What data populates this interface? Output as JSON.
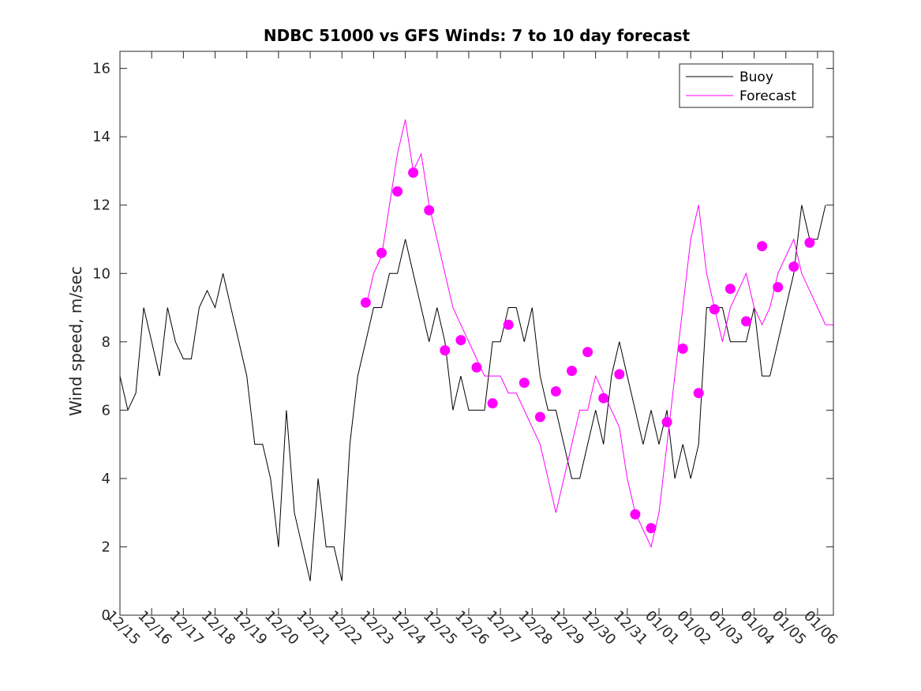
{
  "chart_data": {
    "type": "line",
    "title": "NDBC 51000 vs GFS Winds: 7 to 10 day forecast",
    "xlabel": "",
    "ylabel": "Wind speed, m/sec",
    "ylim": [
      0,
      16.5
    ],
    "yticks": [
      0,
      2,
      4,
      6,
      8,
      10,
      12,
      14,
      16
    ],
    "xlim": [
      0,
      22.5
    ],
    "xtick_positions": [
      0,
      1,
      2,
      3,
      4,
      5,
      6,
      7,
      8,
      9,
      10,
      11,
      12,
      13,
      14,
      15,
      16,
      17,
      18,
      19,
      20,
      21,
      22
    ],
    "xtick_labels": [
      "12/15",
      "12/16",
      "12/17",
      "12/18",
      "12/19",
      "12/20",
      "12/21",
      "12/22",
      "12/23",
      "12/24",
      "12/25",
      "12/26",
      "12/27",
      "12/28",
      "12/29",
      "12/30",
      "12/31",
      "01/01",
      "01/02",
      "01/03",
      "01/04",
      "01/05",
      "01/06"
    ],
    "legend": {
      "position": "top-right",
      "entries": [
        {
          "label": "Buoy",
          "color": "#000000"
        },
        {
          "label": "Forecast",
          "color": "#ff00ff"
        }
      ]
    },
    "series": [
      {
        "name": "Buoy",
        "color": "#000000",
        "x": [
          0,
          0.25,
          0.5,
          0.75,
          1,
          1.25,
          1.5,
          1.75,
          2,
          2.25,
          2.5,
          2.75,
          3,
          3.25,
          3.5,
          3.75,
          4,
          4.25,
          4.5,
          4.75,
          5,
          5.25,
          5.5,
          5.75,
          6,
          6.25,
          6.5,
          6.75,
          7,
          7.25,
          7.5,
          7.75,
          8,
          8.25,
          8.5,
          8.75,
          9,
          9.25,
          9.5,
          9.75,
          10,
          10.25,
          10.5,
          10.75,
          11,
          11.25,
          11.5,
          11.75,
          12,
          12.25,
          12.5,
          12.75,
          13,
          13.25,
          13.5,
          13.75,
          14,
          14.25,
          14.5,
          14.75,
          15,
          15.25,
          15.5,
          15.75,
          16,
          16.25,
          16.5,
          16.75,
          17,
          17.25,
          17.5,
          17.75,
          18,
          18.25,
          18.5,
          18.75,
          19,
          19.25,
          19.5,
          19.75,
          20,
          20.25,
          20.5,
          20.75,
          21,
          21.25,
          21.5,
          21.75,
          22,
          22.25
        ],
        "y": [
          7,
          6,
          6.5,
          9,
          8,
          7,
          9,
          8,
          7.5,
          7.5,
          9,
          9.5,
          9,
          10,
          9,
          8,
          7,
          5,
          5,
          4,
          2,
          6,
          3,
          2,
          1,
          4,
          2,
          2,
          1,
          5,
          7,
          8,
          9,
          9,
          10,
          10,
          11,
          10,
          9,
          8,
          9,
          8,
          6,
          7,
          6,
          6,
          6,
          8,
          8,
          9,
          9,
          8,
          9,
          7,
          6,
          6,
          5,
          4,
          4,
          5,
          6,
          5,
          7,
          8,
          7,
          6,
          5,
          6,
          5,
          6,
          4,
          5,
          4,
          5,
          9,
          9,
          9,
          8,
          8,
          8,
          9,
          7,
          7,
          8,
          9,
          10,
          12,
          11,
          11,
          12
        ]
      },
      {
        "name": "Forecast",
        "color": "#ff00ff",
        "x": [
          7.75,
          8,
          8.25,
          8.5,
          8.75,
          9,
          9.25,
          9.5,
          9.75,
          10,
          10.25,
          10.5,
          10.75,
          11,
          11.25,
          11.5,
          11.75,
          12,
          12.25,
          12.5,
          12.75,
          13,
          13.25,
          13.5,
          13.75,
          14,
          14.25,
          14.5,
          14.75,
          15,
          15.25,
          15.5,
          15.75,
          16,
          16.25,
          16.5,
          16.75,
          17,
          17.25,
          17.5,
          17.75,
          18,
          18.25,
          18.5,
          18.75,
          19,
          19.25,
          19.5,
          19.75,
          20,
          20.25,
          20.5,
          20.75,
          21,
          21.25,
          21.5,
          21.75,
          22,
          22.25,
          22.5
        ],
        "y": [
          9,
          10,
          10.5,
          12,
          13.5,
          14.5,
          13,
          13.5,
          12,
          11,
          10,
          9,
          8.5,
          8,
          7.5,
          7,
          7,
          7,
          6.5,
          6.5,
          6,
          5.5,
          5,
          4,
          3,
          4,
          5,
          6,
          6,
          7,
          6.5,
          6,
          5.5,
          4,
          3,
          2.5,
          2,
          3,
          5,
          7,
          9,
          11,
          12,
          10,
          9,
          8,
          9,
          9.5,
          10,
          9,
          8.5,
          9,
          10,
          10.5,
          11,
          10,
          9.5,
          9,
          8.5,
          8.5
        ]
      },
      {
        "name": "Forecast markers",
        "color": "#ff00ff",
        "x": [
          7.75,
          8.25,
          8.75,
          9.25,
          9.75,
          10.25,
          10.75,
          11.25,
          11.75,
          12.25,
          12.75,
          13.25,
          13.75,
          14.25,
          14.75,
          15.25,
          15.75,
          16.25,
          16.75,
          17.25,
          17.75,
          18.25,
          18.75,
          19.25,
          19.75,
          20.25,
          20.75,
          21.25,
          21.75
        ],
        "y": [
          9.15,
          10.6,
          12.4,
          12.95,
          11.85,
          7.75,
          8.05,
          7.25,
          6.2,
          8.5,
          6.8,
          5.8,
          6.55,
          7.15,
          7.7,
          6.35,
          7.05,
          2.95,
          2.55,
          5.65,
          7.8,
          6.5,
          8.95,
          9.55,
          8.6,
          10.8,
          9.6,
          10.2,
          10.9
        ]
      }
    ]
  }
}
